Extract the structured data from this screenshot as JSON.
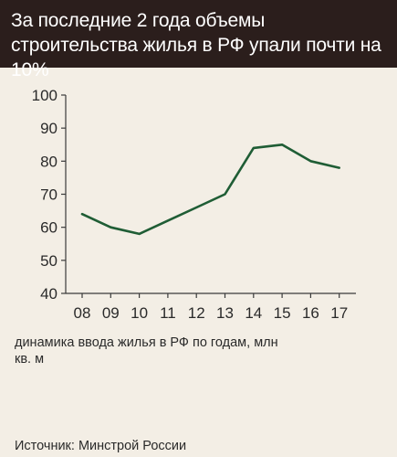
{
  "header": {
    "title": "За последние 2 года объемы строительства жилья в РФ упали почти на 10%"
  },
  "chart_data": {
    "type": "line",
    "title": "За последние 2 года объемы строительства жилья в РФ упали почти на 10%",
    "categories": [
      "08",
      "09",
      "10",
      "11",
      "12",
      "13",
      "14",
      "15",
      "16",
      "17"
    ],
    "series": [
      {
        "values": [
          64,
          60,
          58,
          62,
          66,
          70,
          84,
          85,
          80,
          78
        ]
      }
    ],
    "ylim": [
      40,
      100
    ],
    "yticks": [
      40,
      50,
      60,
      70,
      80,
      90,
      100
    ],
    "grid": false,
    "line_color": "#1f5d35",
    "caption": "динамика ввода жилья в РФ по годам, млн кв. м"
  },
  "source": "Источник: Минстрой России"
}
